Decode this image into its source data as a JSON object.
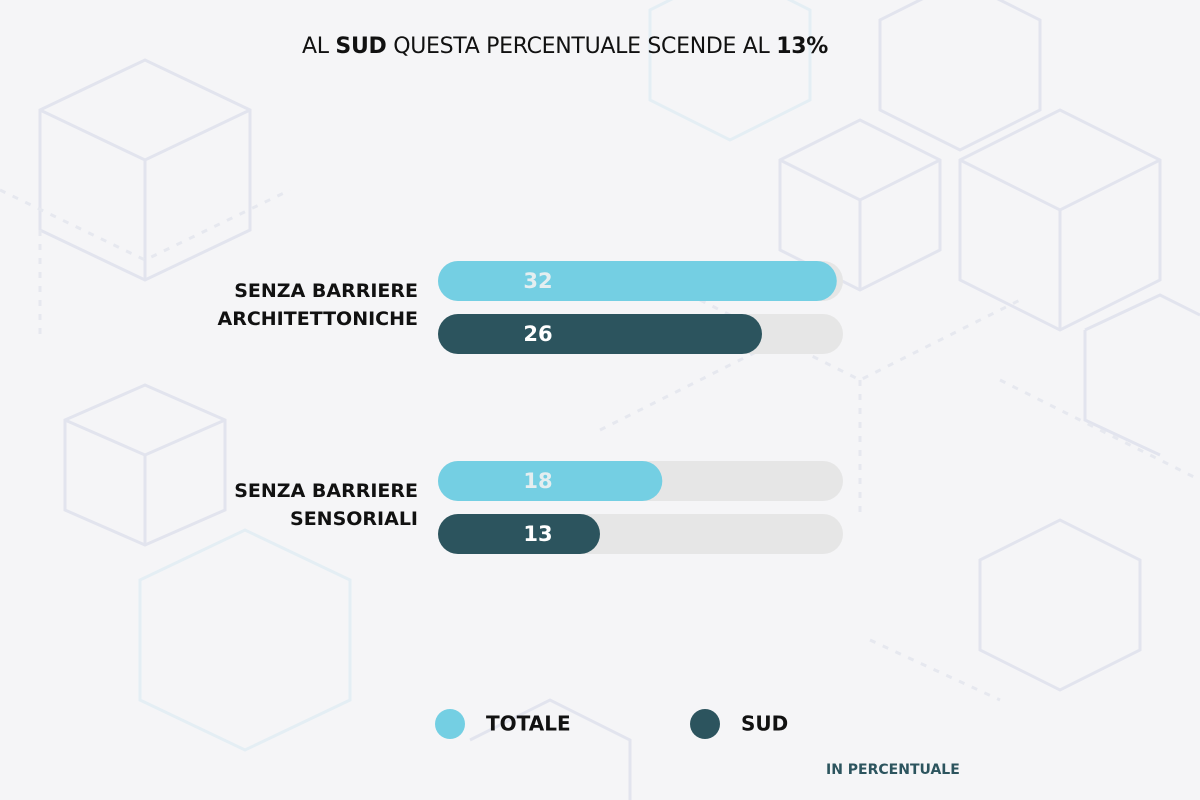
{
  "chart_data": {
    "type": "bar",
    "orientation": "horizontal",
    "title": [
      {
        "text": "AL",
        "bold": false
      },
      {
        "text": "SUD",
        "bold": true
      },
      {
        "text": "QUESTA PERCENTUALE SCENDE AL",
        "bold": false
      },
      {
        "text": "13%",
        "bold": true
      }
    ],
    "categories": [
      "SENZA BARRIERE\nARCHITETTONICHE",
      "SENZA BARRIERE\nSENSORIALI"
    ],
    "series": [
      {
        "name": "TOTALE",
        "color": "#74cfe3",
        "label_color": "#e4eef0",
        "values": [
          32,
          18
        ]
      },
      {
        "name": "SUD",
        "color": "#2c545e",
        "label_color": "#ffffff",
        "values": [
          26,
          13
        ]
      }
    ],
    "track_color": "#e6e6e6",
    "xlim": [
      0,
      32.5
    ],
    "note": "IN PERCENTUALE"
  }
}
